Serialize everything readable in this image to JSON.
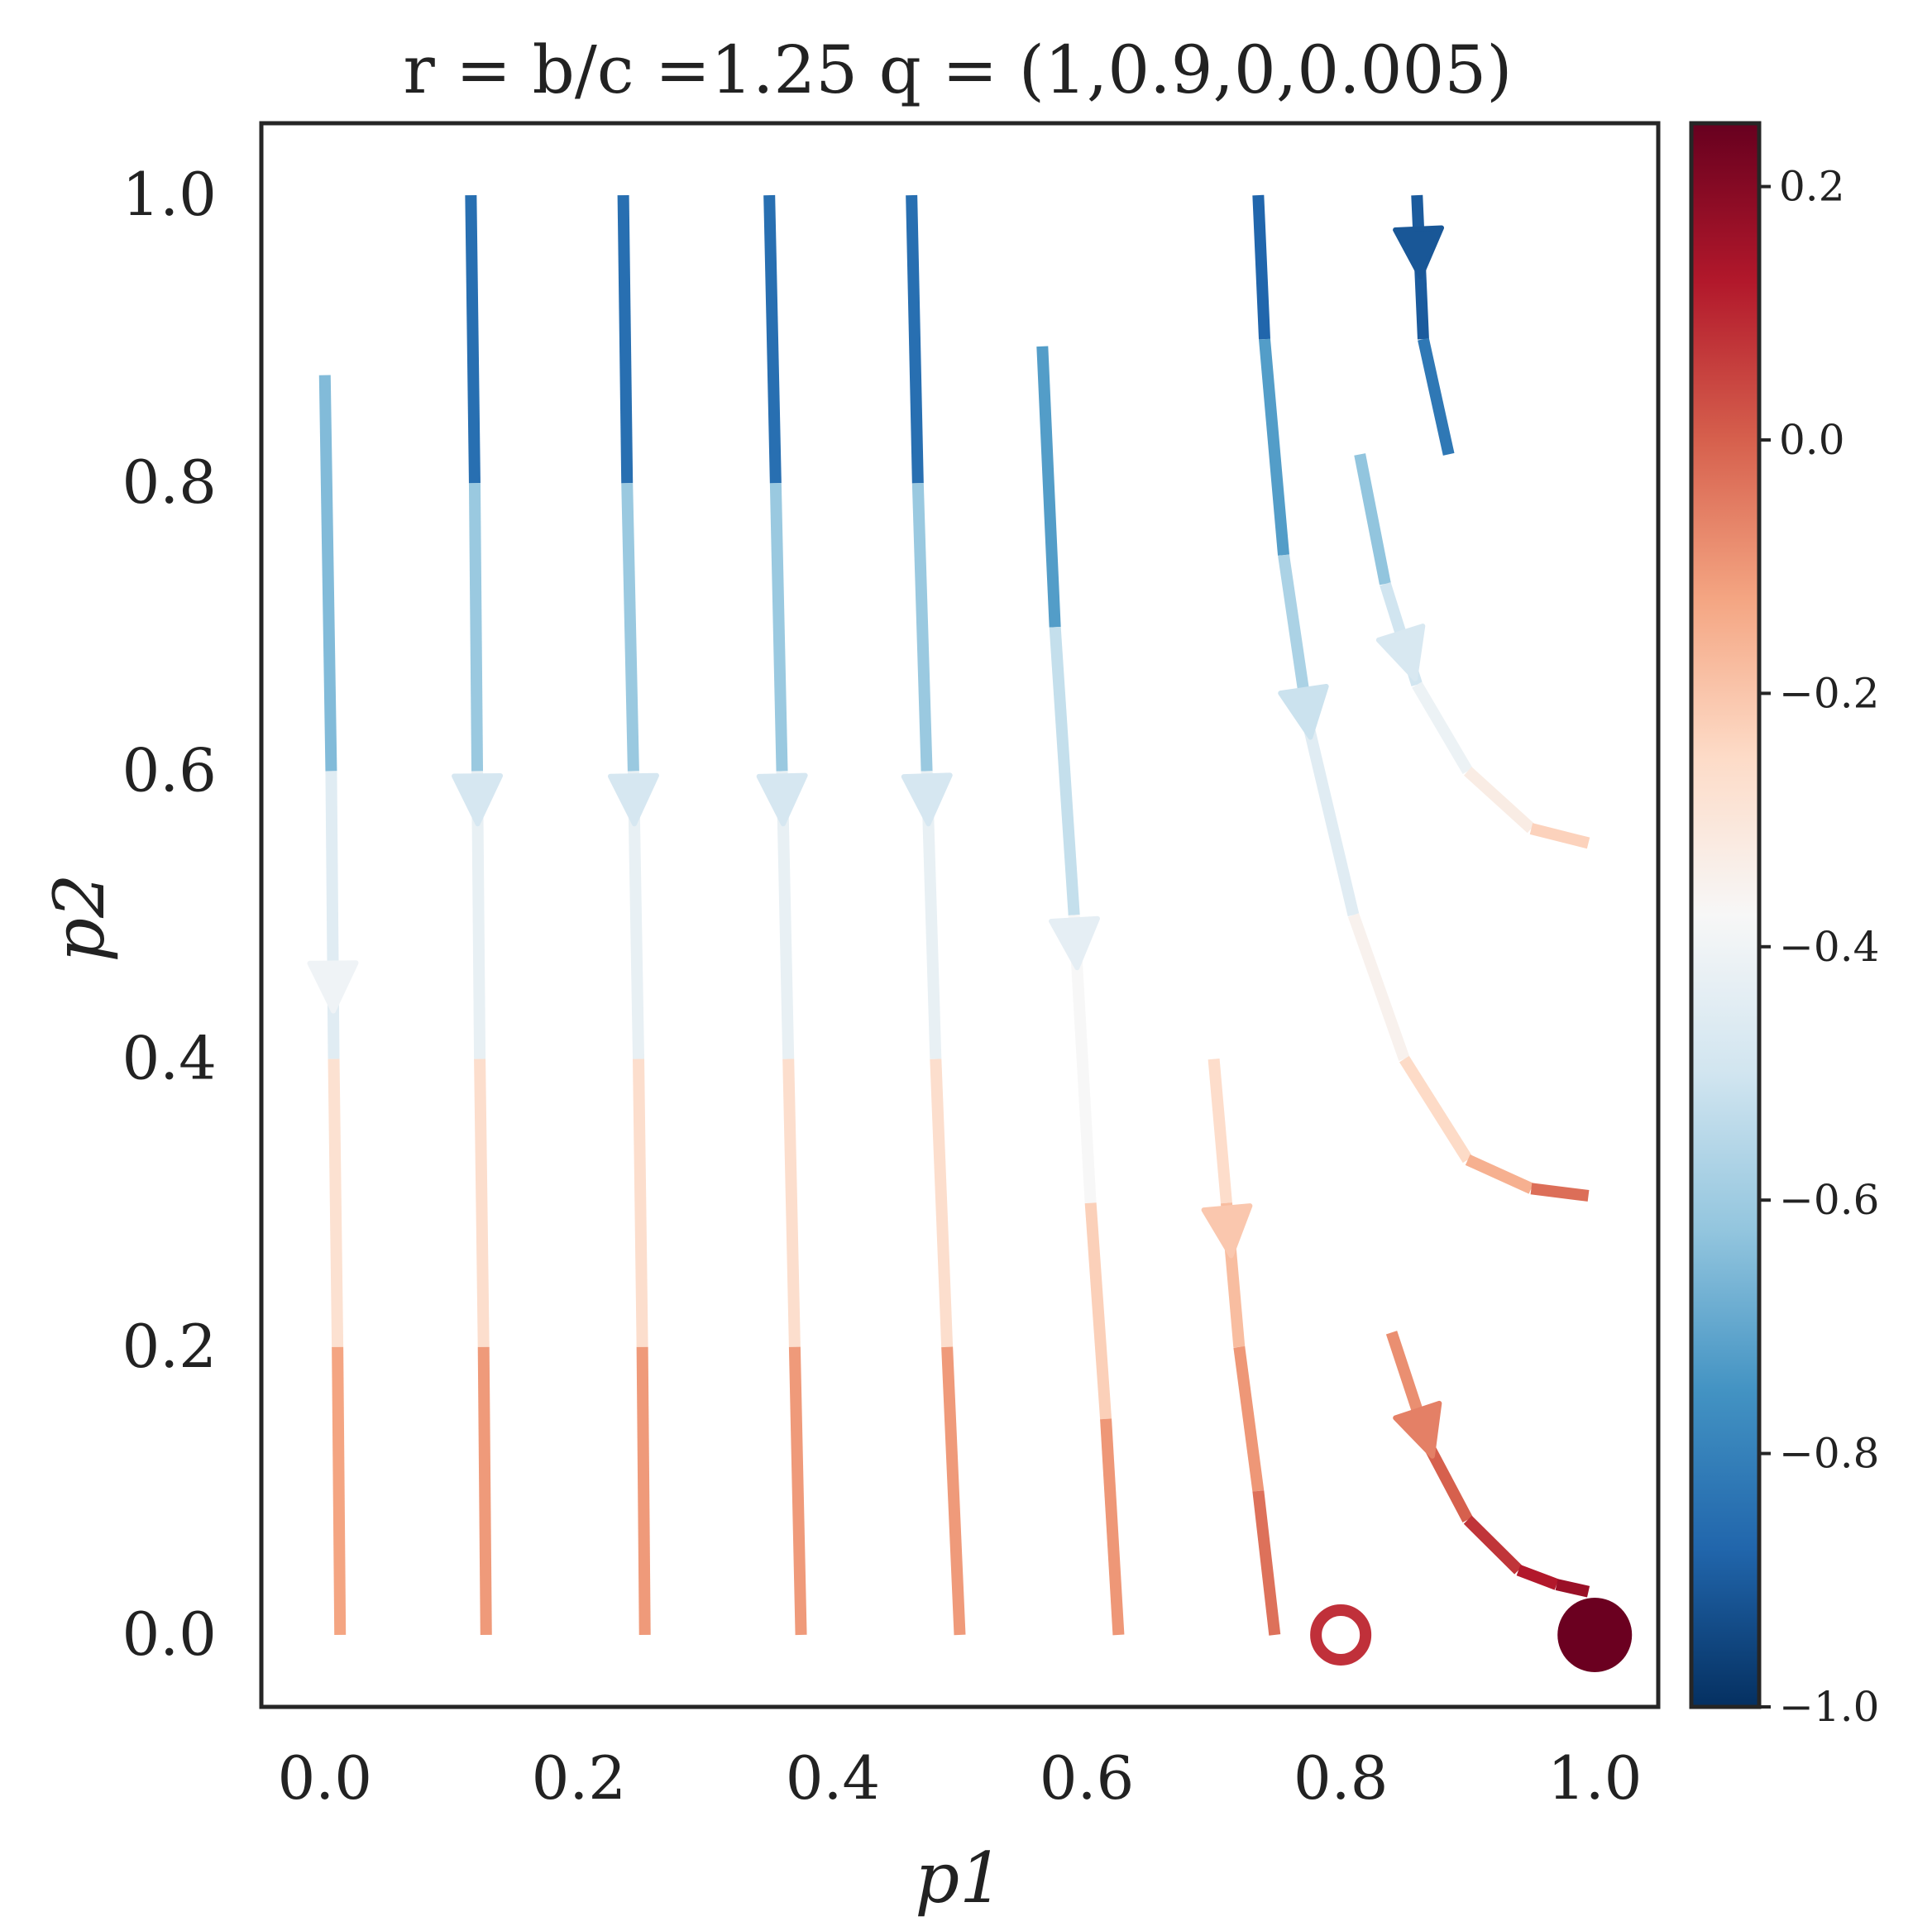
{
  "chart_data": {
    "type": "line",
    "title": "r = b/c =1.25 q = (1,0.9,0,0.005)",
    "xlabel": "p1",
    "ylabel": "p2",
    "xlim": [
      -0.05,
      1.05
    ],
    "ylim": [
      -0.05,
      1.05
    ],
    "xticks": [
      0.0,
      0.2,
      0.4,
      0.6,
      0.8,
      1.0
    ],
    "xtick_labels": [
      "0.0",
      "0.2",
      "0.4",
      "0.6",
      "0.8",
      "1.0"
    ],
    "yticks": [
      0.0,
      0.2,
      0.4,
      0.6,
      0.8,
      1.0
    ],
    "ytick_labels": [
      "0.0",
      "0.2",
      "0.4",
      "0.6",
      "0.8",
      "1.0"
    ],
    "grid": false,
    "colorbar": {
      "colormap": "RdBu_r",
      "range": [
        -1.0,
        0.25
      ],
      "ticks": [
        0.2,
        0.0,
        -0.2,
        -0.4,
        -0.6,
        -0.8,
        -1.0
      ],
      "tick_labels": [
        "0.2",
        "0.0",
        "−0.2",
        "−0.4",
        "−0.6",
        "−0.8",
        "−1.0"
      ]
    },
    "streamlines": [
      {
        "points": [
          [
            0.0,
            0.875
          ],
          [
            0.005,
            0.6
          ],
          [
            0.007,
            0.4
          ],
          [
            0.01,
            0.2
          ],
          [
            0.012,
            0.0
          ]
        ],
        "values": [
          -0.75,
          -0.55,
          -0.35,
          -0.2,
          -0.05
        ],
        "arrow_at": 0.45
      },
      {
        "points": [
          [
            0.115,
            1.0
          ],
          [
            0.118,
            0.8
          ],
          [
            0.12,
            0.6
          ],
          [
            0.122,
            0.4
          ],
          [
            0.125,
            0.2
          ],
          [
            0.127,
            0.0
          ]
        ],
        "values": [
          -0.98,
          -0.72,
          -0.5,
          -0.35,
          -0.18,
          -0.03
        ],
        "arrow_at": 0.58
      },
      {
        "points": [
          [
            0.235,
            1.0
          ],
          [
            0.238,
            0.8
          ],
          [
            0.243,
            0.6
          ],
          [
            0.247,
            0.4
          ],
          [
            0.25,
            0.2
          ],
          [
            0.252,
            0.0
          ]
        ],
        "values": [
          -0.98,
          -0.72,
          -0.5,
          -0.35,
          -0.18,
          -0.03
        ],
        "arrow_at": 0.58
      },
      {
        "points": [
          [
            0.35,
            1.0
          ],
          [
            0.355,
            0.8
          ],
          [
            0.36,
            0.6
          ],
          [
            0.365,
            0.4
          ],
          [
            0.37,
            0.2
          ],
          [
            0.375,
            0.0
          ]
        ],
        "values": [
          -0.98,
          -0.72,
          -0.5,
          -0.35,
          -0.18,
          -0.03
        ],
        "arrow_at": 0.58
      },
      {
        "points": [
          [
            0.462,
            1.0
          ],
          [
            0.467,
            0.8
          ],
          [
            0.474,
            0.6
          ],
          [
            0.481,
            0.4
          ],
          [
            0.49,
            0.2
          ],
          [
            0.5,
            0.0
          ]
        ],
        "values": [
          -0.98,
          -0.72,
          -0.5,
          -0.35,
          -0.18,
          -0.03
        ],
        "arrow_at": 0.58
      },
      {
        "points": [
          [
            0.565,
            0.895
          ],
          [
            0.575,
            0.7
          ],
          [
            0.59,
            0.5
          ],
          [
            0.603,
            0.3
          ],
          [
            0.615,
            0.15
          ],
          [
            0.625,
            0.0
          ]
        ],
        "values": [
          -0.85,
          -0.6,
          -0.45,
          -0.3,
          -0.15,
          -0.05
        ],
        "arrow_at": 0.48
      },
      {
        "points": [
          [
            0.735,
            1.0
          ],
          [
            0.74,
            0.9
          ],
          [
            0.755,
            0.75
          ],
          [
            0.775,
            0.63
          ],
          [
            0.81,
            0.5
          ],
          [
            0.85,
            0.4
          ],
          [
            0.9,
            0.33
          ],
          [
            0.95,
            0.31
          ],
          [
            0.995,
            0.305
          ]
        ],
        "values": [
          -0.95,
          -0.8,
          -0.65,
          -0.5,
          -0.4,
          -0.3,
          -0.2,
          -0.1,
          0.05
        ],
        "arrow_at": 0.64
      },
      {
        "points": [
          [
            0.7,
            0.4
          ],
          [
            0.71,
            0.3
          ],
          [
            0.72,
            0.2
          ],
          [
            0.735,
            0.1
          ],
          [
            0.748,
            0.0
          ]
        ],
        "values": [
          -0.3,
          -0.22,
          -0.14,
          -0.06,
          0.0
        ],
        "arrow_at": 0.28
      },
      {
        "points": [
          [
            0.86,
            1.0
          ],
          [
            0.865,
            0.9
          ],
          [
            0.885,
            0.82
          ]
        ],
        "values": [
          -0.95,
          -0.85,
          -0.8
        ],
        "arrow_at": 0.96
      },
      {
        "points": [
          [
            0.815,
            0.82
          ],
          [
            0.835,
            0.73
          ],
          [
            0.86,
            0.66
          ],
          [
            0.9,
            0.6
          ],
          [
            0.95,
            0.56
          ],
          [
            0.995,
            0.55
          ]
        ],
        "values": [
          -0.7,
          -0.55,
          -0.45,
          -0.37,
          -0.28,
          -0.18
        ],
        "arrow_at": 0.68
      },
      {
        "points": [
          [
            0.84,
            0.21
          ],
          [
            0.87,
            0.13
          ],
          [
            0.9,
            0.08
          ],
          [
            0.94,
            0.045
          ],
          [
            0.97,
            0.035
          ],
          [
            0.995,
            0.03
          ]
        ],
        "values": [
          -0.12,
          -0.05,
          0.05,
          0.1,
          0.15,
          0.18
        ],
        "arrow_at": 0.14
      }
    ],
    "fixed_points": [
      {
        "p1": 0.8,
        "p2": 0.0,
        "kind": "unstable",
        "marker": "open-circle",
        "color": "#c0303a"
      },
      {
        "p1": 1.0,
        "p2": 0.0,
        "kind": "stable",
        "marker": "filled-circle",
        "color": "#6b0020"
      }
    ]
  }
}
